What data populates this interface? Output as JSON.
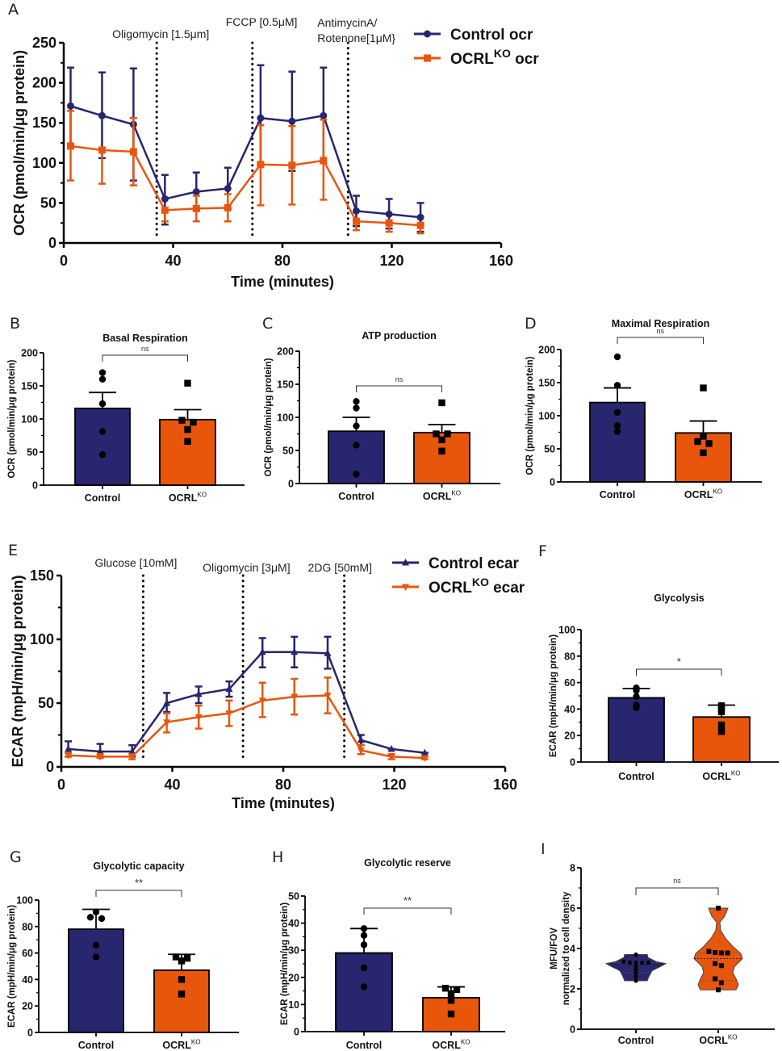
{
  "colors": {
    "control": "#27266e",
    "ko": "#e8560c",
    "axis": "#000000",
    "dots": "#000000"
  },
  "chart_data": [
    {
      "panel": "A",
      "type": "line",
      "xlabel": "Time (minutes)",
      "ylabel": "OCR (pmol/min/μg protein)",
      "xlim": [
        0,
        160
      ],
      "ylim": [
        0,
        250
      ],
      "xticks": [
        0,
        40,
        80,
        120,
        160
      ],
      "yticks": [
        0,
        50,
        100,
        150,
        200,
        250
      ],
      "injections": [
        {
          "x": 34,
          "label": [
            "Oligomycin [1.5μm]"
          ]
        },
        {
          "x": 69,
          "label": [
            "FCCP [0.5μM]"
          ]
        },
        {
          "x": 104,
          "label": [
            "AntimycinA/",
            "Rotenone[1μM}"
          ]
        }
      ],
      "x": [
        2.5,
        14,
        25.5,
        37,
        48.5,
        60,
        72,
        83.5,
        95,
        107,
        119,
        130.5
      ],
      "series": [
        {
          "name": "Control ocr",
          "marker": "circle",
          "values": [
            171,
            159,
            148,
            55,
            64,
            68,
            156,
            152,
            159,
            40,
            36,
            32
          ],
          "err_hi": [
            219,
            213,
            218,
            85,
            88,
            94,
            222,
            214,
            219,
            59,
            55,
            50
          ],
          "err_lo": [
            124,
            106,
            78,
            23,
            41,
            43,
            98,
            90,
            100,
            21,
            18,
            14
          ]
        },
        {
          "name": "OCRL^KO ocr",
          "marker": "square",
          "values": [
            121,
            116,
            114,
            41,
            43,
            44,
            98,
            97,
            103,
            27,
            25,
            22
          ],
          "err_hi": [
            165,
            113,
            156,
            41,
            59,
            61,
            147,
            146,
            154,
            27,
            25,
            22
          ],
          "err_lo": [
            78,
            74,
            72,
            27,
            27,
            27,
            47,
            48,
            54,
            16,
            14,
            12
          ]
        }
      ],
      "legend": [
        {
          "name": "Control ocr",
          "base": "Control ocr",
          "sup": ""
        },
        {
          "name": "OCRL^KO ocr",
          "base": "OCRL",
          "sup": "KO",
          "tail": " ocr"
        }
      ]
    },
    {
      "panel": "B",
      "type": "bar",
      "title": "Basal  Respiration",
      "ylabel": "OCR (pmol/min/μg protein)",
      "ylim": [
        0,
        200
      ],
      "yticks": [
        0,
        50,
        100,
        150,
        200
      ],
      "categories": [
        "Control",
        "OCRL^KO"
      ],
      "values": [
        116,
        99
      ],
      "sem": [
        24,
        15
      ],
      "points": [
        [
          170,
          160,
          123,
          81,
          46
        ],
        [
          154,
          98,
          95,
          84,
          66
        ]
      ],
      "significance": "ns"
    },
    {
      "panel": "C",
      "type": "bar",
      "title": "ATP production",
      "ylabel": "OCR (pmol/min/μg protein)",
      "ylim": [
        0,
        200
      ],
      "yticks": [
        0,
        50,
        100,
        150,
        200
      ],
      "categories": [
        "Control",
        "OCRL^KO"
      ],
      "values": [
        79,
        77
      ],
      "sem": [
        21,
        12
      ],
      "points": [
        [
          124,
          114,
          87,
          58,
          14
        ],
        [
          122,
          75,
          75,
          66,
          49
        ]
      ],
      "significance": "ns"
    },
    {
      "panel": "D",
      "type": "bar",
      "title": "Maximal Respiration",
      "ylabel": "OCR (pmol/min/μg protein)",
      "ylim": [
        0,
        200
      ],
      "yticks": [
        0,
        50,
        100,
        150,
        200
      ],
      "categories": [
        "Control",
        "OCRL^KO"
      ],
      "values": [
        120,
        74
      ],
      "sem": [
        22,
        18
      ],
      "points": [
        [
          189,
          146,
          105,
          85,
          76
        ],
        [
          142,
          69,
          61,
          58,
          44
        ]
      ],
      "significance": "ns"
    },
    {
      "panel": "E",
      "type": "line",
      "xlabel": "Time (minutes)",
      "ylabel": "ECAR (mpH/min/μg protein)",
      "xlim": [
        0,
        160
      ],
      "ylim": [
        0,
        150
      ],
      "xticks": [
        0,
        40,
        80,
        120,
        160
      ],
      "yticks": [
        0,
        50,
        100,
        150
      ],
      "injections": [
        {
          "x": 29.5,
          "label": [
            "Glucose [10mM]"
          ]
        },
        {
          "x": 65.5,
          "label": [
            "Oligomycin [3μM]"
          ]
        },
        {
          "x": 102,
          "label": [
            "2DG [50mM]"
          ]
        }
      ],
      "x": [
        2.5,
        14,
        25.5,
        38,
        49.5,
        60.5,
        72.5,
        84,
        96,
        108,
        119,
        131
      ],
      "series": [
        {
          "name": "Control ecar",
          "marker": "triangle-up",
          "values": [
            14,
            12,
            12,
            50,
            57,
            61,
            90,
            90,
            89,
            21,
            14,
            11
          ],
          "err_hi": [
            20,
            18,
            17,
            58,
            63,
            67,
            101,
            102,
            102,
            25,
            14,
            11
          ],
          "err_lo": [
            8,
            8,
            8,
            43,
            50,
            55,
            78,
            78,
            77,
            17,
            14,
            11
          ]
        },
        {
          "name": "OCRL^KO ecar",
          "marker": "triangle-down",
          "values": [
            9,
            8,
            8,
            35,
            39,
            42,
            52,
            55,
            56,
            13,
            8,
            7
          ],
          "err_hi": [
            11,
            10,
            10,
            42,
            48,
            52,
            66,
            69,
            70,
            17,
            10,
            8
          ],
          "err_lo": [
            8,
            7,
            6,
            27,
            30,
            32,
            39,
            41,
            42,
            10,
            6,
            6
          ]
        }
      ],
      "legend": [
        {
          "name": "Control ecar",
          "base": "Control ecar",
          "sup": ""
        },
        {
          "name": "OCRL^KO ecar",
          "base": "OCRL",
          "sup": "KO",
          "tail": " ecar"
        }
      ]
    },
    {
      "panel": "F",
      "type": "bar",
      "title": "Glycolysis",
      "ylabel": "ECAR (mpH/min/μg protein)",
      "ylim": [
        0,
        100
      ],
      "yticks": [
        0,
        20,
        40,
        60,
        80,
        100
      ],
      "categories": [
        "Control",
        "OCRL^KO"
      ],
      "values": [
        48.5,
        34
      ],
      "sd": [
        7,
        9
      ],
      "points": [
        [
          56,
          54,
          49.5,
          43,
          41
        ],
        [
          42.5,
          40,
          38,
          28,
          23
        ]
      ],
      "significance": "*"
    },
    {
      "panel": "G",
      "type": "bar",
      "title": "Glycolytic capacity",
      "ylabel": "ECAR (mpH/min/μg protein)",
      "ylim": [
        0,
        100
      ],
      "yticks": [
        0,
        20,
        40,
        60,
        80,
        100
      ],
      "categories": [
        "Control",
        "OCRL^KO"
      ],
      "values": [
        78,
        47
      ],
      "sd": [
        15,
        12
      ],
      "points": [
        [
          91,
          87,
          86,
          66,
          57
        ],
        [
          57,
          56,
          54,
          40,
          29
        ]
      ],
      "significance": "**"
    },
    {
      "panel": "H",
      "type": "bar",
      "title": "Glycolytic reserve",
      "ylabel": "ECAR (mpH/min/μg protein)",
      "ylim": [
        0,
        50
      ],
      "yticks": [
        0,
        10,
        20,
        30,
        40,
        50
      ],
      "categories": [
        "Control",
        "OCRL^KO"
      ],
      "values": [
        29,
        12.5
      ],
      "sd": [
        9,
        4
      ],
      "points": [
        [
          38,
          35.5,
          32,
          23.5,
          16.5
        ],
        [
          16,
          15.5,
          14,
          11.5,
          6.5
        ]
      ],
      "significance": "**"
    },
    {
      "panel": "I",
      "type": "violin",
      "ylabel": [
        "MFU/FOV",
        "normalized to cell density"
      ],
      "ylim": [
        0,
        8
      ],
      "yticks": [
        0,
        2,
        4,
        6,
        8
      ],
      "categories": [
        "Control",
        "OCRL^KO"
      ],
      "medians": [
        3.2,
        3.5
      ],
      "quartiles": [
        [
          2.8,
          3.3
        ],
        [
          2.4,
          3.8
        ]
      ],
      "ranges": [
        [
          2.4,
          3.7
        ],
        [
          1.95,
          6.0
        ]
      ],
      "points": [
        [
          3.7,
          3.35,
          3.3,
          3.3,
          3.3,
          3.3,
          3.1,
          2.95,
          2.8,
          2.6,
          2.4
        ],
        [
          6.0,
          3.85,
          3.8,
          3.78,
          3.78,
          3.25,
          3.15,
          2.5,
          2.3,
          1.95
        ]
      ],
      "significance": "ns"
    }
  ]
}
